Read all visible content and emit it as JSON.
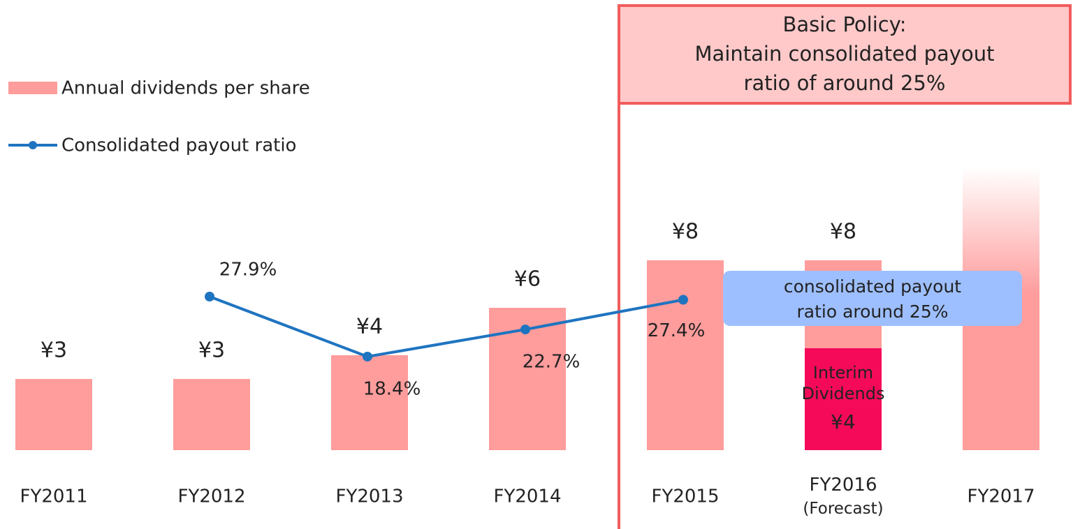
{
  "chart_data": {
    "type": "bar",
    "categories": [
      "FY2011",
      "FY2012",
      "FY2013",
      "FY2014",
      "FY2015",
      "FY2016\n(Forecast)",
      "FY2017"
    ],
    "ylim": [
      0,
      18
    ],
    "y2lim": [
      0,
      70
    ],
    "series": [
      {
        "name": "Annual dividends per share",
        "type": "bar",
        "color": "#ff9c9c",
        "values": [
          3,
          3,
          4,
          6,
          8,
          8,
          null
        ],
        "value_labels": [
          "¥3",
          "¥3",
          "¥4",
          "¥6",
          "¥8",
          "¥8",
          null
        ]
      },
      {
        "name": "Consolidated payout ratio",
        "type": "line",
        "axis": "y2",
        "color": "#1f74c0",
        "values": [
          null,
          27.9,
          18.4,
          22.7,
          27.4,
          null,
          null
        ],
        "value_labels": [
          null,
          "27.9%",
          "18.4%",
          "22.7%",
          "27.4%",
          null,
          null
        ]
      }
    ],
    "annotations": {
      "policy": "Basic Policy:\nMaintain consolidated payout\nratio of around 25%",
      "forecast_ratio": "consolidated payout\nratio around 25%",
      "interim_dividends": {
        "label": "Interim\nDividends",
        "value": 4,
        "value_label": "¥4",
        "color": "#f50a5a"
      }
    }
  }
}
